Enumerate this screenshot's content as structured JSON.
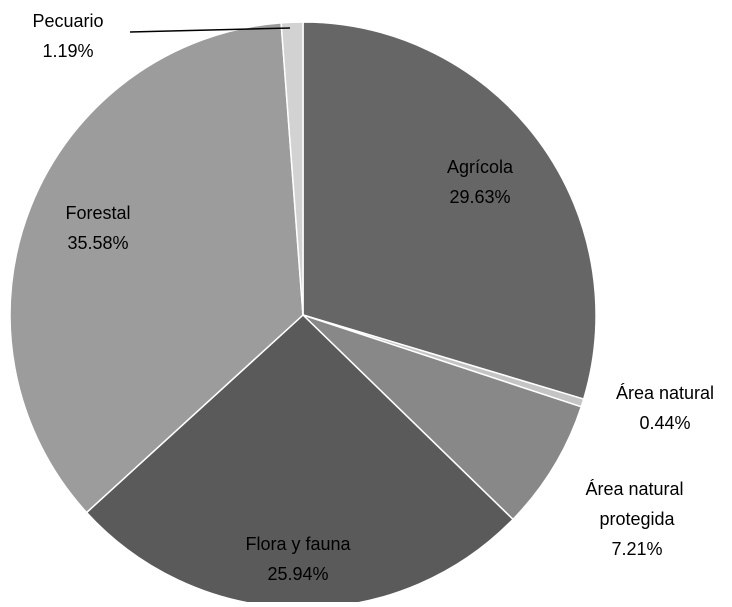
{
  "chart_data": {
    "type": "pie",
    "categories": [
      "Agrícola",
      "Área natural",
      "Área natural protegida",
      "Flora y fauna",
      "Forestal",
      "Pecuario"
    ],
    "values": [
      29.63,
      0.44,
      7.21,
      25.94,
      35.58,
      1.19
    ],
    "value_labels": [
      "29.63%",
      "0.44%",
      "7.21%",
      "25.94%",
      "35.58%",
      "1.19%"
    ],
    "colors": [
      "#666666",
      "#c4c4c4",
      "#888888",
      "#5a5a5a",
      "#9c9c9c",
      "#d2d2d2"
    ]
  }
}
